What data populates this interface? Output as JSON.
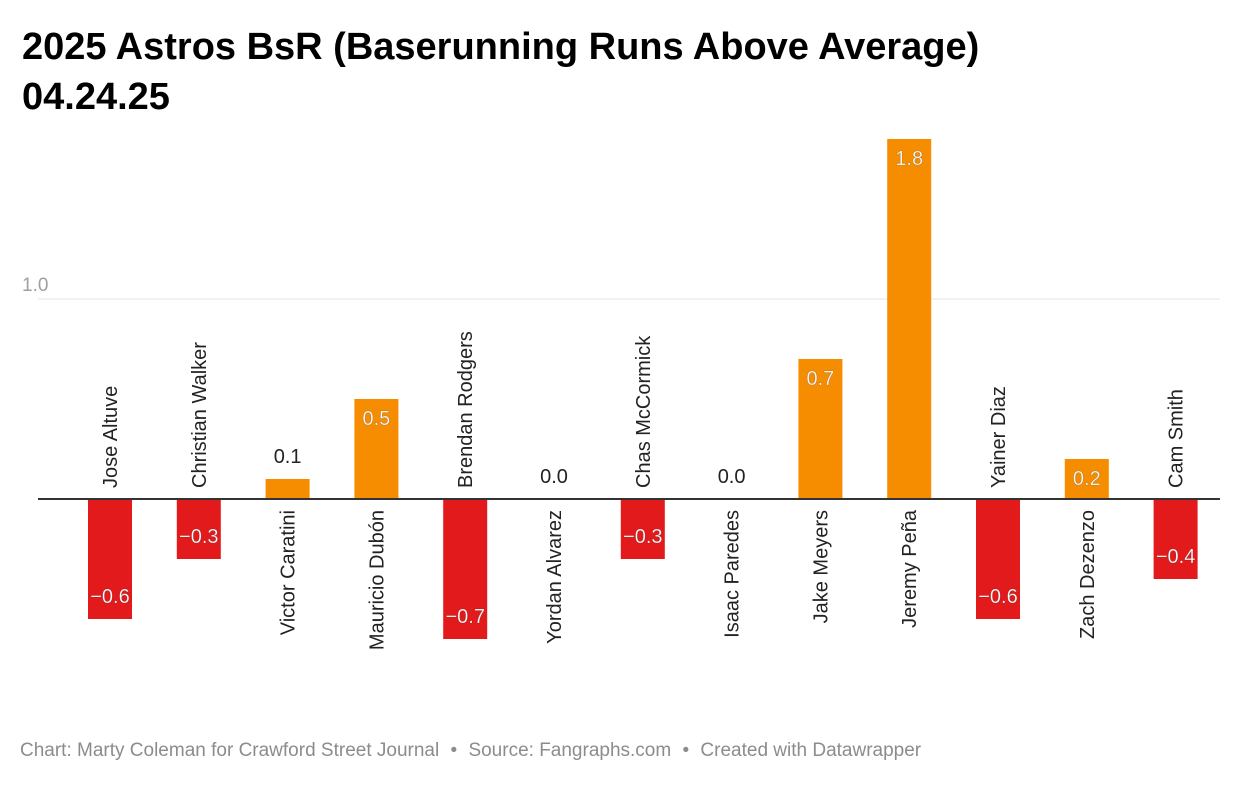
{
  "title_line1": "2025 Astros BsR (Baserunning Runs Above Average)",
  "title_line2": "04.24.25",
  "footer": {
    "chart_credit": "Chart: Marty Coleman for Crawford Street Journal",
    "source": "Source: Fangraphs.com",
    "created_with": "Created with Datawrapper",
    "separator": "•"
  },
  "colors": {
    "positive": "#f68c00",
    "negative": "#e31a1c",
    "grid": "#e6e6e6",
    "axis": "#333333"
  },
  "chart_data": {
    "type": "bar",
    "title": "2025 Astros BsR (Baserunning Runs Above Average)",
    "subtitle": "04.24.25",
    "categories": [
      "Jose Altuve",
      "Christian Walker",
      "Victor Caratini",
      "Mauricio Dubón",
      "Brendan Rodgers",
      "Yordan Alvarez",
      "Chas McCormick",
      "Isaac Paredes",
      "Jake Meyers",
      "Jeremy Peña",
      "Yainer Diaz",
      "Zach Dezenzo",
      "Cam Smith"
    ],
    "values": [
      -0.6,
      -0.3,
      0.1,
      0.5,
      -0.7,
      0.0,
      -0.3,
      0.0,
      0.7,
      1.8,
      -0.6,
      0.2,
      -0.4
    ],
    "labels": [
      "−0.6",
      "−0.3",
      "0.1",
      "0.5",
      "−0.7",
      "0.0",
      "−0.3",
      "0.0",
      "0.7",
      "1.8",
      "−0.6",
      "0.2",
      "−0.4"
    ],
    "yticks": [
      {
        "value": 1.0,
        "label": "1.0"
      }
    ],
    "ylim": [
      -0.9,
      1.8
    ],
    "grid": true,
    "legend": "none"
  }
}
